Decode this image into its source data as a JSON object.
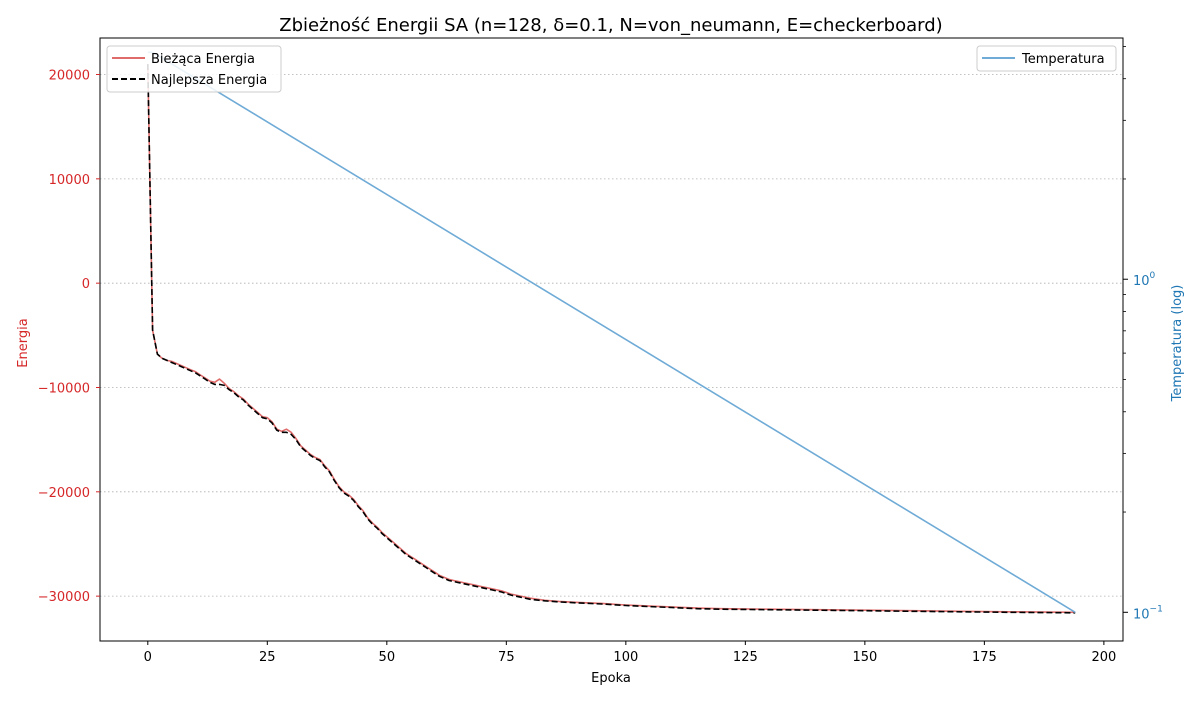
{
  "chart_data": {
    "type": "line",
    "title": "Zbieżność Energii SA (n=128, δ=0.1, N=von_neumann, E=checkerboard)",
    "xlabel": "Epoka",
    "ylabel": "Energia",
    "y2label": "Temperatura (log)",
    "xlim": [
      -10,
      204
    ],
    "ylim": [
      -34300,
      23500
    ],
    "y2scale": "log",
    "y2lim": [
      0.082,
      5.3
    ],
    "x_ticks": [
      0,
      25,
      50,
      75,
      100,
      125,
      150,
      175,
      200
    ],
    "x_tick_labels": [
      "0",
      "25",
      "50",
      "75",
      "100",
      "125",
      "150",
      "175",
      "200"
    ],
    "y_ticks": [
      20000,
      10000,
      0,
      -10000,
      -20000,
      -30000
    ],
    "y_tick_labels": [
      "20000",
      "10000",
      "0",
      "−10000",
      "−20000",
      "−30000"
    ],
    "y2_major_ticks": [
      0.1,
      1
    ],
    "y2_tick_labels": [
      "10",
      "10"
    ],
    "y2_tick_exponents": [
      "−1",
      "0"
    ],
    "y2_minor_ticks": [
      0.2,
      0.3,
      0.4,
      0.5,
      0.6,
      0.7,
      0.8,
      0.9,
      2,
      3,
      4,
      5
    ],
    "grid": "y-dotted",
    "legend_left_position": "upper-left",
    "legend_right_position": "upper-right",
    "colors": {
      "current": "#e06b6b",
      "best": "#000000",
      "temperature": "#6fabd6",
      "left_axis": "#d62728",
      "right_axis": "#1f77b4",
      "grid": "#b0b0b0"
    },
    "series": [
      {
        "name": "Bieżąca Energia",
        "axis": "left",
        "style": "solid",
        "x": [
          0,
          1,
          2,
          3,
          4,
          5,
          6,
          7,
          8,
          9,
          10,
          11,
          12,
          13,
          14,
          15,
          16,
          17,
          18,
          19,
          20,
          21,
          22,
          23,
          24,
          25,
          26,
          27,
          28,
          29,
          30,
          31,
          32,
          33,
          34,
          35,
          36,
          37,
          38,
          39,
          40,
          41,
          42,
          43,
          44,
          45,
          46,
          47,
          48,
          49,
          50,
          51,
          52,
          53,
          54,
          55,
          56,
          57,
          58,
          59,
          60,
          61,
          62,
          63,
          64,
          65,
          66,
          68,
          70,
          72,
          74,
          76,
          78,
          80,
          83,
          86,
          90,
          95,
          100,
          105,
          110,
          115,
          120,
          130,
          140,
          150,
          160,
          170,
          180,
          194
        ],
        "values": [
          21000,
          -4500,
          -6800,
          -7200,
          -7400,
          -7500,
          -7700,
          -7900,
          -8100,
          -8300,
          -8500,
          -8800,
          -9100,
          -9400,
          -9500,
          -9200,
          -9600,
          -10100,
          -10400,
          -10800,
          -11100,
          -11600,
          -12000,
          -12400,
          -12800,
          -12900,
          -13300,
          -14000,
          -14200,
          -14000,
          -14300,
          -14900,
          -15600,
          -16000,
          -16400,
          -16700,
          -16900,
          -17500,
          -18000,
          -18800,
          -19500,
          -20000,
          -20300,
          -20700,
          -21300,
          -21800,
          -22500,
          -23000,
          -23400,
          -23900,
          -24300,
          -24700,
          -25100,
          -25500,
          -25900,
          -26200,
          -26500,
          -26800,
          -27100,
          -27400,
          -27700,
          -28000,
          -28200,
          -28400,
          -28500,
          -28600,
          -28700,
          -28900,
          -29100,
          -29300,
          -29500,
          -29800,
          -30000,
          -30200,
          -30400,
          -30500,
          -30600,
          -30700,
          -30850,
          -30950,
          -31050,
          -31150,
          -31200,
          -31250,
          -31300,
          -31350,
          -31400,
          -31450,
          -31500,
          -31550
        ]
      },
      {
        "name": "Najlepsza Energia",
        "axis": "left",
        "style": "dashed",
        "x": [
          0,
          1,
          2,
          3,
          4,
          5,
          6,
          7,
          8,
          9,
          10,
          11,
          12,
          13,
          14,
          15,
          16,
          17,
          18,
          19,
          20,
          21,
          22,
          23,
          24,
          25,
          26,
          27,
          28,
          29,
          30,
          31,
          32,
          33,
          34,
          35,
          36,
          37,
          38,
          39,
          40,
          41,
          42,
          43,
          44,
          45,
          46,
          47,
          48,
          49,
          50,
          51,
          52,
          53,
          54,
          55,
          56,
          57,
          58,
          59,
          60,
          61,
          62,
          63,
          64,
          65,
          66,
          68,
          70,
          72,
          74,
          76,
          78,
          80,
          83,
          86,
          90,
          95,
          100,
          105,
          110,
          115,
          120,
          130,
          140,
          150,
          160,
          170,
          180,
          194
        ],
        "values": [
          21000,
          -4500,
          -6800,
          -7200,
          -7400,
          -7600,
          -7800,
          -8000,
          -8200,
          -8400,
          -8600,
          -8900,
          -9200,
          -9500,
          -9700,
          -9700,
          -9800,
          -10200,
          -10500,
          -10900,
          -11200,
          -11700,
          -12100,
          -12500,
          -12900,
          -13000,
          -13400,
          -14100,
          -14300,
          -14300,
          -14500,
          -15000,
          -15700,
          -16100,
          -16500,
          -16800,
          -17000,
          -17600,
          -18100,
          -18900,
          -19600,
          -20100,
          -20400,
          -20800,
          -21400,
          -21900,
          -22600,
          -23100,
          -23500,
          -24000,
          -24400,
          -24800,
          -25200,
          -25600,
          -26000,
          -26300,
          -26600,
          -26900,
          -27200,
          -27500,
          -27800,
          -28100,
          -28300,
          -28500,
          -28600,
          -28700,
          -28800,
          -29000,
          -29200,
          -29400,
          -29600,
          -29900,
          -30100,
          -30300,
          -30450,
          -30550,
          -30650,
          -30750,
          -30900,
          -31000,
          -31100,
          -31200,
          -31250,
          -31300,
          -31350,
          -31400,
          -31450,
          -31500,
          -31550,
          -31600
        ]
      },
      {
        "name": "Temperatura",
        "axis": "right",
        "style": "solid",
        "x": [
          0,
          1,
          194
        ],
        "values": [
          4.8,
          4.8,
          0.1
        ]
      }
    ]
  }
}
